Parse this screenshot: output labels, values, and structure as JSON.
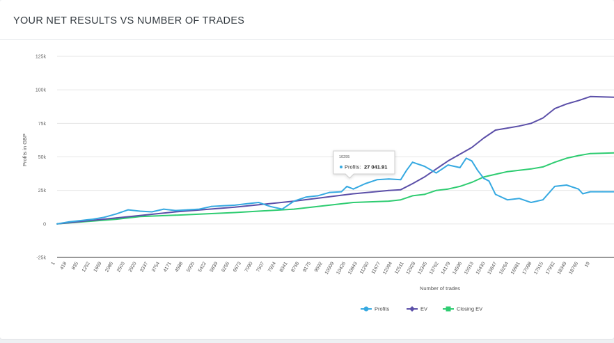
{
  "page": {
    "title": "YOUR NET RESULTS VS NUMBER OF TRADES"
  },
  "colors": {
    "profits": "#36a9e1",
    "ev": "#5b4fa8",
    "closing_ev": "#2ecc71",
    "grid": "#e6e6e6",
    "axis": "#333333"
  },
  "chart_data": {
    "type": "line",
    "title": "",
    "xlabel": "Number of trades",
    "ylabel": "Profits in GBP",
    "ylim": [
      -25000,
      125000
    ],
    "grid": true,
    "legend_position": "bottom-center",
    "y_ticks": [
      {
        "value": -25000,
        "label": "-25k"
      },
      {
        "value": 0,
        "label": "0"
      },
      {
        "value": 25000,
        "label": "25k"
      },
      {
        "value": 50000,
        "label": "50k"
      },
      {
        "value": 75000,
        "label": "75k"
      },
      {
        "value": 100000,
        "label": "100k"
      },
      {
        "value": 125000,
        "label": "125k"
      }
    ],
    "x_range": [
      1,
      19600
    ],
    "x_ticks": [
      "1",
      "418",
      "835",
      "1252",
      "1669",
      "2086",
      "2503",
      "2920",
      "3337",
      "3754",
      "4171",
      "4588",
      "5005",
      "5422",
      "5839",
      "6256",
      "6673",
      "7090",
      "7507",
      "7924",
      "8341",
      "8758",
      "9175",
      "9592",
      "10009",
      "10426",
      "10843",
      "11260",
      "11677",
      "12094",
      "12511",
      "12928",
      "13345",
      "13762",
      "14179",
      "14596",
      "15013",
      "15430",
      "15847",
      "16264",
      "16681",
      "17098",
      "17515",
      "17932",
      "18349",
      "18766",
      "19"
    ],
    "series": [
      {
        "name": "Profits",
        "color": "#36a9e1",
        "points": [
          [
            1,
            0
          ],
          [
            418,
            1500
          ],
          [
            835,
            2500
          ],
          [
            1252,
            3500
          ],
          [
            1669,
            5000
          ],
          [
            2086,
            7500
          ],
          [
            2503,
            10500
          ],
          [
            2920,
            9500
          ],
          [
            3337,
            9000
          ],
          [
            3754,
            11000
          ],
          [
            4171,
            10000
          ],
          [
            4588,
            10500
          ],
          [
            5005,
            11000
          ],
          [
            5422,
            13000
          ],
          [
            5839,
            13500
          ],
          [
            6256,
            14000
          ],
          [
            6673,
            15000
          ],
          [
            7090,
            16000
          ],
          [
            7507,
            13000
          ],
          [
            7924,
            11000
          ],
          [
            8341,
            17000
          ],
          [
            8758,
            20000
          ],
          [
            9175,
            21000
          ],
          [
            9592,
            23500
          ],
          [
            10009,
            24000
          ],
          [
            10200,
            28000
          ],
          [
            10426,
            26000
          ],
          [
            10843,
            30000
          ],
          [
            11260,
            33000
          ],
          [
            11677,
            33500
          ],
          [
            12094,
            33000
          ],
          [
            12300,
            40000
          ],
          [
            12511,
            46000
          ],
          [
            12928,
            43000
          ],
          [
            13345,
            38000
          ],
          [
            13762,
            44000
          ],
          [
            14179,
            42000
          ],
          [
            14400,
            49000
          ],
          [
            14596,
            47000
          ],
          [
            14800,
            40000
          ],
          [
            15013,
            34000
          ],
          [
            15200,
            32000
          ],
          [
            15430,
            22000
          ],
          [
            15847,
            18000
          ],
          [
            16264,
            19000
          ],
          [
            16681,
            16000
          ],
          [
            17098,
            18000
          ],
          [
            17515,
            28000
          ],
          [
            17932,
            29000
          ],
          [
            18349,
            26000
          ],
          [
            18500,
            22500
          ],
          [
            18766,
            24000
          ],
          [
            19200,
            24000
          ],
          [
            19600,
            24000
          ]
        ]
      },
      {
        "name": "EV",
        "color": "#5b4fa8",
        "points": [
          [
            1,
            0
          ],
          [
            2086,
            4500
          ],
          [
            4171,
            9000
          ],
          [
            6256,
            12500
          ],
          [
            8341,
            17000
          ],
          [
            10426,
            22500
          ],
          [
            11677,
            25000
          ],
          [
            12094,
            25500
          ],
          [
            12511,
            30000
          ],
          [
            12928,
            35000
          ],
          [
            13345,
            41000
          ],
          [
            13762,
            47000
          ],
          [
            14179,
            52000
          ],
          [
            14596,
            57000
          ],
          [
            15013,
            64000
          ],
          [
            15430,
            70000
          ],
          [
            15847,
            71500
          ],
          [
            16264,
            73000
          ],
          [
            16681,
            75000
          ],
          [
            17098,
            79000
          ],
          [
            17515,
            86000
          ],
          [
            17932,
            89500
          ],
          [
            18349,
            92000
          ],
          [
            18766,
            95000
          ],
          [
            19600,
            94500
          ]
        ]
      },
      {
        "name": "Closing EV",
        "color": "#2ecc71",
        "points": [
          [
            1,
            0
          ],
          [
            2086,
            3500
          ],
          [
            2920,
            5500
          ],
          [
            4171,
            6500
          ],
          [
            6256,
            8500
          ],
          [
            8341,
            11000
          ],
          [
            9175,
            13000
          ],
          [
            10426,
            16000
          ],
          [
            11677,
            17000
          ],
          [
            12094,
            18000
          ],
          [
            12511,
            21000
          ],
          [
            12928,
            22000
          ],
          [
            13345,
            25000
          ],
          [
            13762,
            26000
          ],
          [
            14179,
            28000
          ],
          [
            14596,
            31000
          ],
          [
            15013,
            35000
          ],
          [
            15430,
            37000
          ],
          [
            15847,
            39000
          ],
          [
            16264,
            40000
          ],
          [
            16681,
            41000
          ],
          [
            17098,
            42500
          ],
          [
            17515,
            46000
          ],
          [
            17932,
            49000
          ],
          [
            18349,
            51000
          ],
          [
            18766,
            52500
          ],
          [
            19600,
            53000
          ]
        ]
      }
    ],
    "tooltip": {
      "x": "10295",
      "series": "Profits",
      "label": "Profits:",
      "value_text": "27 041.91",
      "value": 27041.91
    }
  }
}
